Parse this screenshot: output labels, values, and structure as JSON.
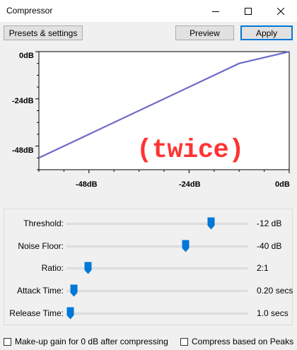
{
  "window": {
    "title": "Compressor"
  },
  "toolbar": {
    "presets_label": "Presets & settings",
    "preview_label": "Preview",
    "apply_label": "Apply"
  },
  "graph": {
    "y_ticks": [
      "0dB",
      "-24dB",
      "-48dB"
    ],
    "x_ticks": [
      "-48dB",
      "-24dB",
      "0dB"
    ],
    "line_color": "#6b6bc9",
    "threshold_db": -12,
    "ratio": 2
  },
  "overlay_text": "(twice)",
  "sliders": [
    {
      "label": "Threshold:",
      "value": "-12 dB",
      "position": 0.8
    },
    {
      "label": "Noise Floor:",
      "value": "-40 dB",
      "position": 0.66
    },
    {
      "label": "Ratio:",
      "value": "2:1",
      "position": 0.12
    },
    {
      "label": "Attack Time:",
      "value": "0.20 secs",
      "position": 0.04
    },
    {
      "label": "Release Time:",
      "value": "1.0 secs",
      "position": 0.02
    }
  ],
  "options": {
    "makeup_label": "Make-up gain for 0 dB after compressing",
    "peaks_label": "Compress based on Peaks"
  },
  "accent_color": "#0078d7"
}
